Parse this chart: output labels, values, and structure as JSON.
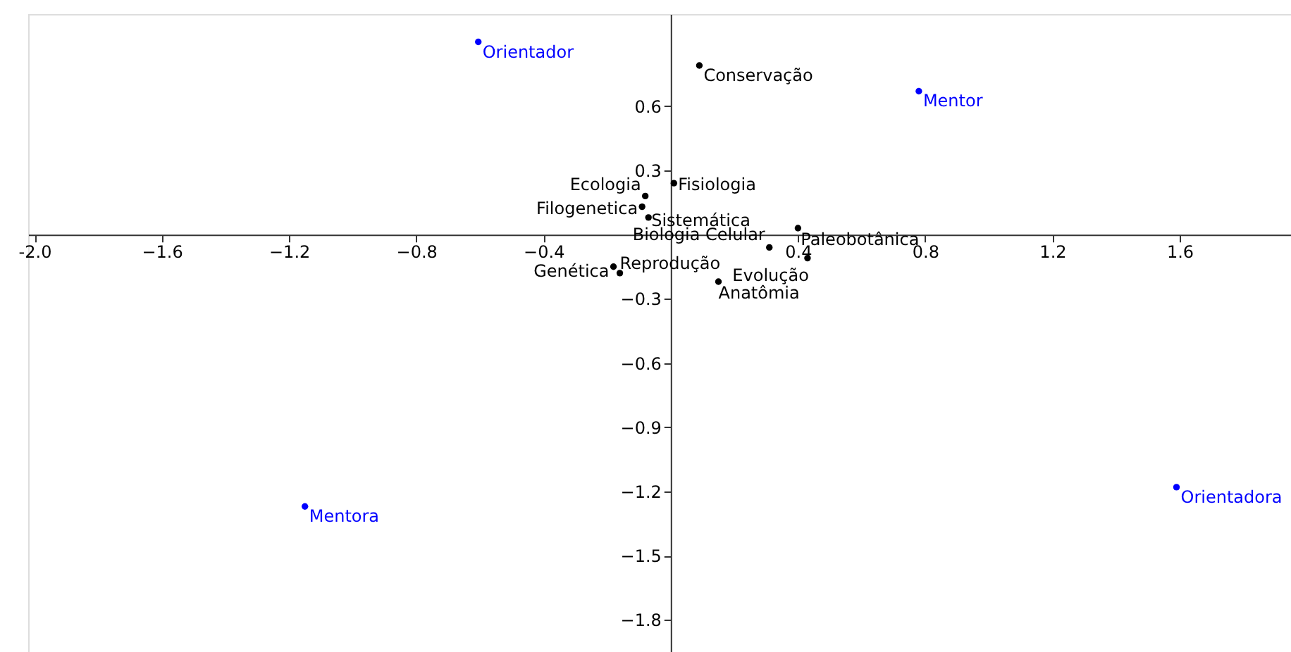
{
  "chart_data": {
    "type": "scatter",
    "xlim": [
      -2.02,
      1.95
    ],
    "ylim": [
      -1.95,
      1.03
    ],
    "xticks": [
      {
        "value": -2,
        "label": "-2.0"
      },
      -1.6,
      -1.2,
      -0.8,
      -0.4,
      0.4,
      0.8,
      1.2,
      1.6
    ],
    "yticks": [
      0.6,
      0.3,
      -0.3,
      -0.6,
      -0.9,
      -1.2,
      -1.5,
      -1.8
    ],
    "marker": "circle",
    "series": [
      {
        "color": "#0000ff",
        "x": [
          -0.605,
          0.78,
          -1.15,
          1.59
        ],
        "values": [
          0.9,
          0.67,
          -1.27,
          -1.18
        ]
      },
      {
        "color": "#000000",
        "x": [
          0.09,
          0.01,
          -0.08,
          -0.09,
          -0.07,
          0.31,
          0.4,
          0.43,
          0.15,
          -0.18,
          -0.16
        ],
        "values": [
          0.79,
          0.24,
          0.18,
          0.13,
          0.08,
          -0.06,
          0.03,
          -0.11,
          -0.22,
          -0.15,
          -0.18
        ]
      }
    ],
    "annotations": [
      {
        "text": "Orientador",
        "x": -0.605,
        "y": 0.9
      },
      {
        "text": "Mentor",
        "x": 0.78,
        "y": 0.67
      },
      {
        "text": "Mentora",
        "x": -1.15,
        "y": -1.27
      },
      {
        "text": "Orientadora",
        "x": 1.59,
        "y": -1.18
      },
      {
        "text": "Conservação",
        "x": 0.09,
        "y": 0.79
      },
      {
        "text": "Fisiologia",
        "x": 0.01,
        "y": 0.24
      },
      {
        "text": "Ecologia",
        "x": -0.08,
        "y": 0.18
      },
      {
        "text": "Filogenetica",
        "x": -0.09,
        "y": 0.13
      },
      {
        "text": "Sistemática",
        "x": -0.07,
        "y": 0.08
      },
      {
        "text": "Biologia Celular",
        "x": 0.31,
        "y": -0.06
      },
      {
        "text": "Paleobotânica",
        "x": 0.4,
        "y": 0.03
      },
      {
        "text": "Evolução",
        "x": 0.43,
        "y": -0.11
      },
      {
        "text": "Anatômia",
        "x": 0.15,
        "y": -0.22
      },
      {
        "text": "Genética",
        "x": -0.18,
        "y": -0.15
      },
      {
        "text": "Reprodução",
        "x": -0.16,
        "y": -0.18
      }
    ]
  }
}
